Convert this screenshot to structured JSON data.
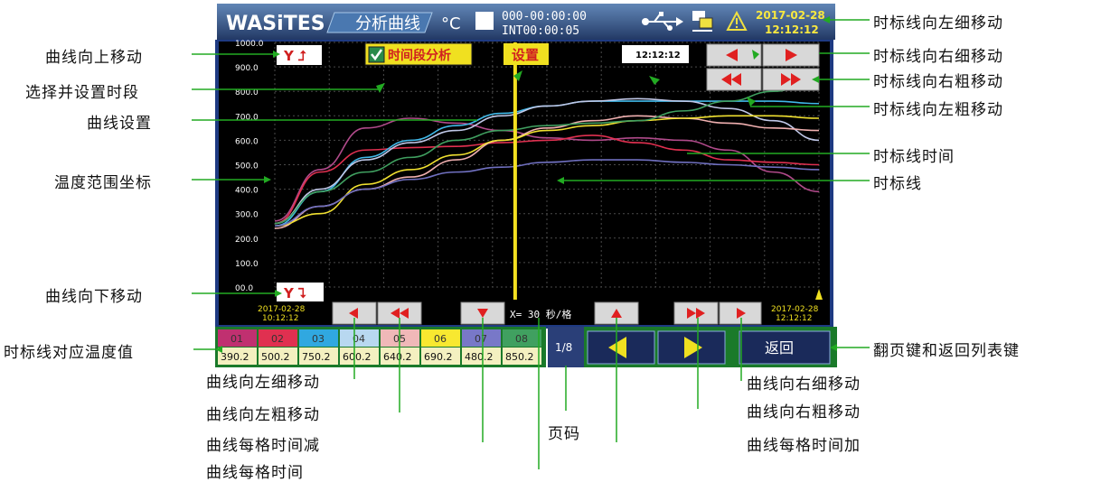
{
  "header": {
    "logo": "WASiTES",
    "title": "分析曲线",
    "unit": "°C",
    "counter_top": "000-00:00:00",
    "counter_bottom": "INT00:00:05",
    "date": "2017-02-28",
    "time": "12:12:12"
  },
  "plot": {
    "y_ticks": [
      "1000.0",
      "900.0",
      "800.0",
      "700.0",
      "600.0",
      "500.0",
      "400.0",
      "300.0",
      "200.0",
      "100.0",
      "00.0"
    ],
    "y_up_label": "Y",
    "y_down_label": "Y",
    "time_segment_checkbox_label": "时间段分析",
    "setting_button_label": "设置",
    "cursor_time": "12:12:12",
    "start_date": "2017-02-28",
    "start_time": "10:12:12",
    "end_date": "2017-02-28",
    "end_time": "12:12:12",
    "x_interval": "X= 30 秒/格"
  },
  "chart_data": {
    "type": "line",
    "ylim": [
      0,
      1000
    ],
    "x": [
      0,
      1,
      2,
      3,
      4,
      5,
      6,
      7,
      8,
      9,
      10,
      11,
      12
    ],
    "series": [
      {
        "color": "#b04a8a",
        "values": [
          270,
          480,
          650,
          690,
          670,
          640,
          610,
          600,
          610,
          600,
          560,
          470,
          390
        ]
      },
      {
        "color": "#e03050",
        "values": [
          260,
          470,
          560,
          570,
          575,
          590,
          600,
          620,
          590,
          560,
          520,
          510,
          500
        ]
      },
      {
        "color": "#40b8e8",
        "values": [
          250,
          390,
          530,
          600,
          660,
          710,
          740,
          760,
          760,
          760,
          760,
          760,
          750
        ]
      },
      {
        "color": "#c0c8e8",
        "values": [
          260,
          400,
          520,
          590,
          640,
          700,
          740,
          760,
          770,
          760,
          730,
          680,
          600
        ]
      },
      {
        "color": "#f0b0b0",
        "values": [
          240,
          330,
          400,
          450,
          520,
          600,
          650,
          680,
          700,
          690,
          670,
          650,
          640
        ]
      },
      {
        "color": "#f0e030",
        "values": [
          250,
          300,
          420,
          480,
          540,
          600,
          640,
          660,
          680,
          690,
          700,
          700,
          690
        ]
      },
      {
        "color": "#7070c0",
        "values": [
          250,
          330,
          400,
          440,
          470,
          490,
          510,
          520,
          520,
          510,
          500,
          490,
          480
        ]
      },
      {
        "color": "#40a060",
        "values": [
          260,
          390,
          470,
          530,
          600,
          640,
          660,
          670,
          680,
          720,
          760,
          800,
          850
        ]
      }
    ],
    "cursor_x": 5.3
  },
  "channels": [
    {
      "id": "01",
      "value": "390.2",
      "color": "#c03070"
    },
    {
      "id": "02",
      "value": "500.2",
      "color": "#e03050"
    },
    {
      "id": "03",
      "value": "750.2",
      "color": "#30a8e0"
    },
    {
      "id": "04",
      "value": "600.2",
      "color": "#b8d8f0"
    },
    {
      "id": "05",
      "value": "640.2",
      "color": "#f0b8b8"
    },
    {
      "id": "06",
      "value": "690.2",
      "color": "#f8e830"
    },
    {
      "id": "07",
      "value": "480.2",
      "color": "#7878c8"
    },
    {
      "id": "08",
      "value": "850.2",
      "color": "#40a060"
    }
  ],
  "footer": {
    "page": "1/8",
    "back_label": "返回"
  },
  "callouts": {
    "left": {
      "curve_up": "曲线向上移动",
      "select_period": "选择并设置时段",
      "curve_setting": "曲线设置",
      "temp_range": "温度范围坐标",
      "curve_down": "曲线向下移动",
      "cursor_temp": "时标线对应温度值"
    },
    "right": {
      "cursor_left_fine": "时标线向左细移动",
      "cursor_right_fine": "时标线向右细移动",
      "cursor_right_coarse": "时标线向右粗移动",
      "cursor_left_coarse": "时标线向左粗移动",
      "cursor_time": "时标线时间",
      "cursor_line": "时标线",
      "page_back": "翻页键和返回列表键"
    },
    "bottom": {
      "curve_left_fine": "曲线向左细移动",
      "curve_left_coarse": "曲线向左粗移动",
      "interval_down": "曲线每格时间减",
      "interval": "曲线每格时间",
      "page_code": "页码",
      "curve_right_fine": "曲线向右细移动",
      "curve_right_coarse": "曲线向右粗移动",
      "interval_up": "曲线每格时间加"
    }
  }
}
